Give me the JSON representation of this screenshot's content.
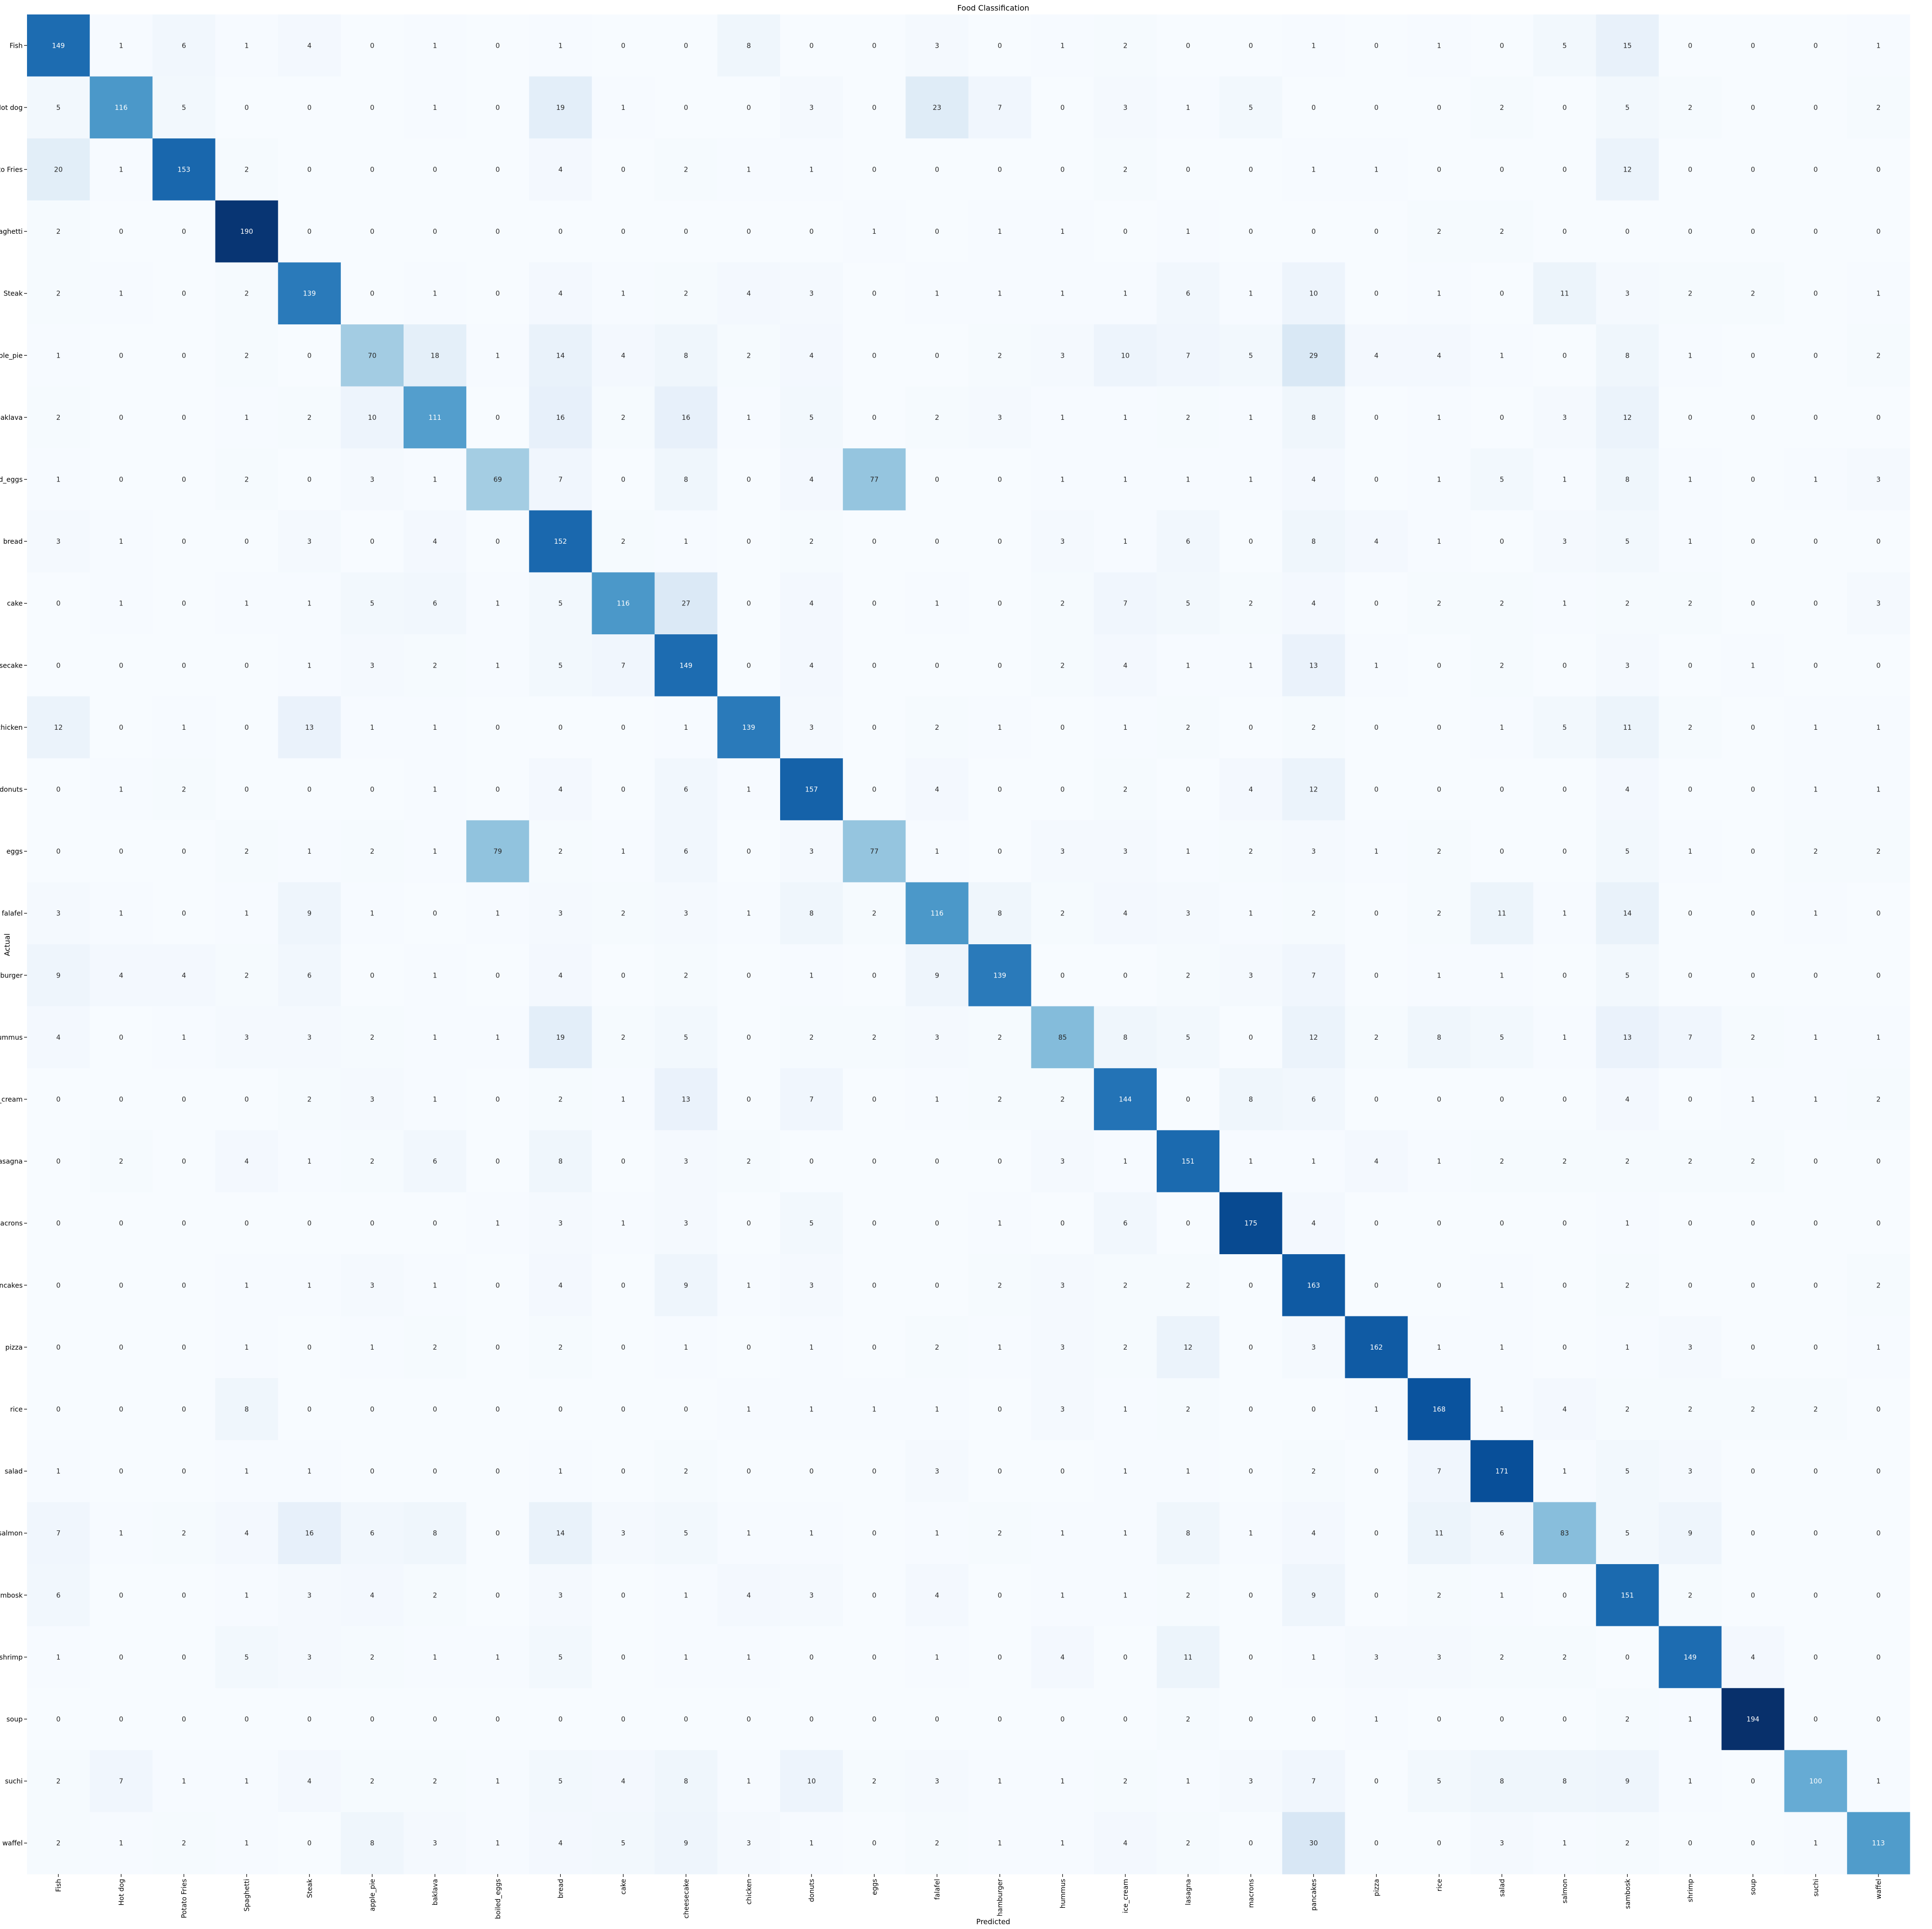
{
  "chart_data": {
    "type": "heatmap",
    "title": "Food Classification",
    "xlabel": "Predicted",
    "ylabel": "Actual",
    "colormap": "Blues",
    "value_range": [
      0,
      194
    ],
    "labels": [
      "Fish",
      "Hot dog",
      "Potato Fries",
      "Spaghetti",
      "Steak",
      "apple_pie",
      "baklava",
      "boiled_eggs",
      "bread",
      "cake",
      "cheesecake",
      "chicken",
      "donuts",
      "eggs",
      "falafel",
      "hamburger",
      "hummus",
      "ice_cream",
      "lasagna",
      "macrons",
      "pancakes",
      "pizza",
      "rice",
      "salad",
      "salmon",
      "sambosk",
      "shrimp",
      "soup",
      "suchi",
      "waffel"
    ],
    "matrix": [
      [
        149,
        1,
        6,
        1,
        4,
        0,
        1,
        0,
        1,
        0,
        0,
        8,
        0,
        0,
        3,
        0,
        1,
        2,
        0,
        0,
        1,
        0,
        1,
        0,
        5,
        15,
        0,
        0,
        0,
        1
      ],
      [
        5,
        116,
        5,
        0,
        0,
        0,
        1,
        0,
        19,
        1,
        0,
        0,
        3,
        0,
        23,
        7,
        0,
        3,
        1,
        5,
        0,
        0,
        0,
        2,
        0,
        5,
        2,
        0,
        0,
        2
      ],
      [
        20,
        1,
        153,
        2,
        0,
        0,
        0,
        0,
        4,
        0,
        2,
        1,
        1,
        0,
        0,
        0,
        0,
        2,
        0,
        0,
        1,
        1,
        0,
        0,
        0,
        12,
        0,
        0,
        0,
        0
      ],
      [
        2,
        0,
        0,
        190,
        0,
        0,
        0,
        0,
        0,
        0,
        0,
        0,
        0,
        1,
        0,
        1,
        1,
        0,
        1,
        0,
        0,
        0,
        2,
        2,
        0,
        0,
        0,
        0,
        0,
        0
      ],
      [
        2,
        1,
        0,
        2,
        139,
        0,
        1,
        0,
        4,
        1,
        2,
        4,
        3,
        0,
        1,
        1,
        1,
        1,
        6,
        1,
        10,
        0,
        1,
        0,
        11,
        3,
        2,
        2,
        0,
        1
      ],
      [
        1,
        0,
        0,
        2,
        0,
        70,
        18,
        1,
        14,
        4,
        8,
        2,
        4,
        0,
        0,
        2,
        3,
        10,
        7,
        5,
        29,
        4,
        4,
        1,
        0,
        8,
        1,
        0,
        0,
        2
      ],
      [
        2,
        0,
        0,
        1,
        2,
        10,
        111,
        0,
        16,
        2,
        16,
        1,
        5,
        0,
        2,
        3,
        1,
        1,
        2,
        1,
        8,
        0,
        1,
        0,
        3,
        12,
        0,
        0,
        0,
        0
      ],
      [
        1,
        0,
        0,
        2,
        0,
        3,
        1,
        69,
        7,
        0,
        8,
        0,
        4,
        77,
        0,
        0,
        1,
        1,
        1,
        1,
        4,
        0,
        1,
        5,
        1,
        8,
        1,
        0,
        1,
        3
      ],
      [
        3,
        1,
        0,
        0,
        3,
        0,
        4,
        0,
        152,
        2,
        1,
        0,
        2,
        0,
        0,
        0,
        3,
        1,
        6,
        0,
        8,
        4,
        1,
        0,
        3,
        5,
        1,
        0,
        0,
        0
      ],
      [
        0,
        1,
        0,
        1,
        1,
        5,
        6,
        1,
        5,
        116,
        27,
        0,
        4,
        0,
        1,
        0,
        2,
        7,
        5,
        2,
        4,
        0,
        2,
        2,
        1,
        2,
        2,
        0,
        0,
        3
      ],
      [
        0,
        0,
        0,
        0,
        1,
        3,
        2,
        1,
        5,
        7,
        149,
        0,
        4,
        0,
        0,
        0,
        2,
        4,
        1,
        1,
        13,
        1,
        0,
        2,
        0,
        3,
        0,
        1,
        0,
        0
      ],
      [
        12,
        0,
        1,
        0,
        13,
        1,
        1,
        0,
        0,
        0,
        1,
        139,
        3,
        0,
        2,
        1,
        0,
        1,
        2,
        0,
        2,
        0,
        0,
        1,
        5,
        11,
        2,
        0,
        1,
        1
      ],
      [
        0,
        1,
        2,
        0,
        0,
        0,
        1,
        0,
        4,
        0,
        6,
        1,
        157,
        0,
        4,
        0,
        0,
        2,
        0,
        4,
        12,
        0,
        0,
        0,
        0,
        4,
        0,
        0,
        1,
        1
      ],
      [
        0,
        0,
        0,
        2,
        1,
        2,
        1,
        79,
        2,
        1,
        6,
        0,
        3,
        77,
        1,
        0,
        3,
        3,
        1,
        2,
        3,
        1,
        2,
        0,
        0,
        5,
        1,
        0,
        2,
        2
      ],
      [
        3,
        1,
        0,
        1,
        9,
        1,
        0,
        1,
        3,
        2,
        3,
        1,
        8,
        2,
        116,
        8,
        2,
        4,
        3,
        1,
        2,
        0,
        2,
        11,
        1,
        14,
        0,
        0,
        1,
        0
      ],
      [
        9,
        4,
        4,
        2,
        6,
        0,
        1,
        0,
        4,
        0,
        2,
        0,
        1,
        0,
        9,
        139,
        0,
        0,
        2,
        3,
        7,
        0,
        1,
        1,
        0,
        5,
        0,
        0,
        0,
        0
      ],
      [
        4,
        0,
        1,
        3,
        3,
        2,
        1,
        1,
        19,
        2,
        5,
        0,
        2,
        2,
        3,
        2,
        85,
        8,
        5,
        0,
        12,
        2,
        8,
        5,
        1,
        13,
        7,
        2,
        1,
        1
      ],
      [
        0,
        0,
        0,
        0,
        2,
        3,
        1,
        0,
        2,
        1,
        13,
        0,
        7,
        0,
        1,
        2,
        2,
        144,
        0,
        8,
        6,
        0,
        0,
        0,
        0,
        4,
        0,
        1,
        1,
        2
      ],
      [
        0,
        2,
        0,
        4,
        1,
        2,
        6,
        0,
        8,
        0,
        3,
        2,
        0,
        0,
        0,
        0,
        3,
        1,
        151,
        1,
        1,
        4,
        1,
        2,
        2,
        2,
        2,
        2,
        0,
        0
      ],
      [
        0,
        0,
        0,
        0,
        0,
        0,
        0,
        1,
        3,
        1,
        3,
        0,
        5,
        0,
        0,
        1,
        0,
        6,
        0,
        175,
        4,
        0,
        0,
        0,
        0,
        1,
        0,
        0,
        0,
        0
      ],
      [
        0,
        0,
        0,
        1,
        1,
        3,
        1,
        0,
        4,
        0,
        9,
        1,
        3,
        0,
        0,
        2,
        3,
        2,
        2,
        0,
        163,
        0,
        0,
        1,
        0,
        2,
        0,
        0,
        0,
        2
      ],
      [
        0,
        0,
        0,
        1,
        0,
        1,
        2,
        0,
        2,
        0,
        1,
        0,
        1,
        0,
        2,
        1,
        3,
        2,
        12,
        0,
        3,
        162,
        1,
        1,
        0,
        1,
        3,
        0,
        0,
        1
      ],
      [
        0,
        0,
        0,
        8,
        0,
        0,
        0,
        0,
        0,
        0,
        0,
        1,
        1,
        1,
        1,
        0,
        3,
        1,
        2,
        0,
        0,
        1,
        168,
        1,
        4,
        2,
        2,
        2,
        2,
        0
      ],
      [
        1,
        0,
        0,
        1,
        1,
        0,
        0,
        0,
        1,
        0,
        2,
        0,
        0,
        0,
        3,
        0,
        0,
        1,
        1,
        0,
        2,
        0,
        7,
        171,
        1,
        5,
        3,
        0,
        0,
        0
      ],
      [
        7,
        1,
        2,
        4,
        16,
        6,
        8,
        0,
        14,
        3,
        5,
        1,
        1,
        0,
        1,
        2,
        1,
        1,
        8,
        1,
        4,
        0,
        11,
        6,
        83,
        5,
        9,
        0,
        0,
        0
      ],
      [
        6,
        0,
        0,
        1,
        3,
        4,
        2,
        0,
        3,
        0,
        1,
        4,
        3,
        0,
        4,
        0,
        1,
        1,
        2,
        0,
        9,
        0,
        2,
        1,
        0,
        151,
        2,
        0,
        0,
        0
      ],
      [
        1,
        0,
        0,
        5,
        3,
        2,
        1,
        1,
        5,
        0,
        1,
        1,
        0,
        0,
        1,
        0,
        4,
        0,
        11,
        0,
        1,
        3,
        3,
        2,
        2,
        0,
        149,
        4,
        0,
        0
      ],
      [
        0,
        0,
        0,
        0,
        0,
        0,
        0,
        0,
        0,
        0,
        0,
        0,
        0,
        0,
        0,
        0,
        0,
        0,
        2,
        0,
        0,
        1,
        0,
        0,
        0,
        2,
        1,
        194,
        0,
        0
      ],
      [
        2,
        7,
        1,
        1,
        4,
        2,
        2,
        1,
        5,
        4,
        8,
        1,
        10,
        2,
        3,
        1,
        1,
        2,
        1,
        3,
        7,
        0,
        5,
        8,
        8,
        9,
        1,
        0,
        100,
        1
      ],
      [
        2,
        1,
        2,
        1,
        0,
        8,
        3,
        1,
        4,
        5,
        9,
        3,
        1,
        0,
        2,
        1,
        1,
        4,
        2,
        0,
        30,
        0,
        0,
        3,
        1,
        2,
        0,
        0,
        1,
        113
      ]
    ]
  }
}
